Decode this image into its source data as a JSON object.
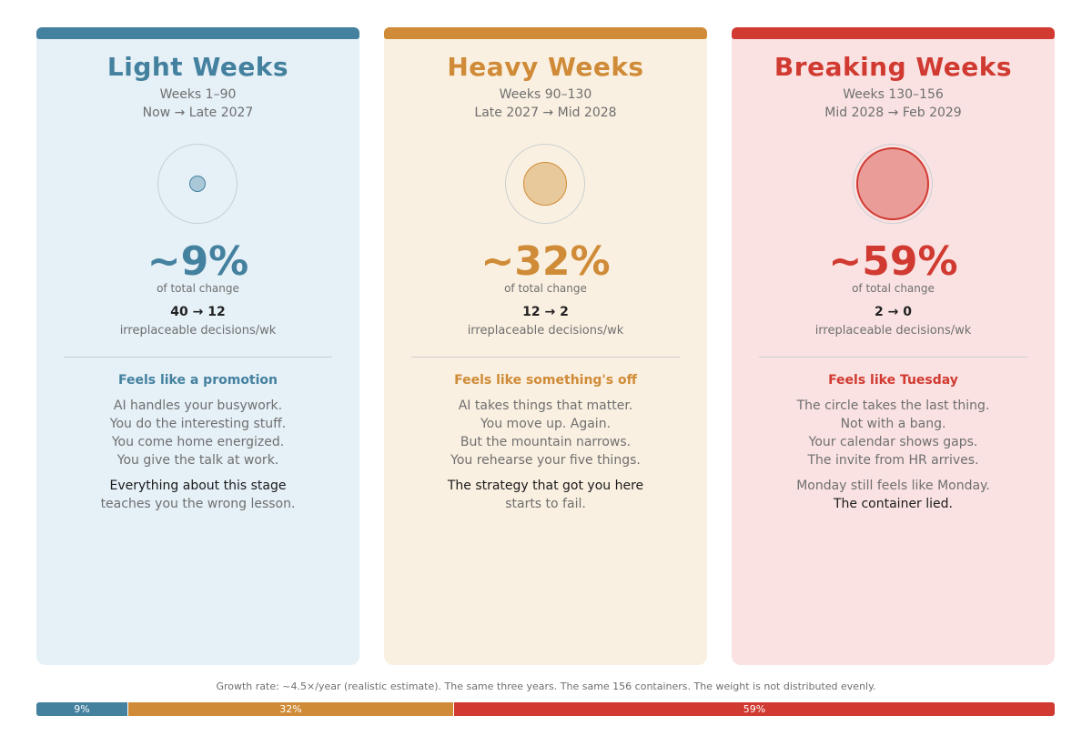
{
  "colors": {
    "light": "#44819f",
    "heavy": "#cf8b37",
    "breaking": "#d03a31",
    "light_bg": "#e5f0f7",
    "heavy_bg": "#faf0e1",
    "breaking_bg": "#fae2e2"
  },
  "cards": [
    {
      "title": "Light Weeks",
      "weeks": "Weeks 1–90",
      "dates": "Now → Late 2027",
      "percent_text": "~9%",
      "percent_value": 9,
      "percent_label": "of total change",
      "decisions": "40 → 12",
      "decisions_label": "irreplaceable decisions/wk",
      "feeling": "Feels like a promotion",
      "lines": [
        "AI handles your busywork.",
        "You do the interesting stuff.",
        "You come home energized.",
        "You give the talk at work."
      ],
      "closing": [
        "Everything about this stage",
        "teaches you the wrong lesson."
      ]
    },
    {
      "title": "Heavy Weeks",
      "weeks": "Weeks 90–130",
      "dates": "Late 2027 → Mid 2028",
      "percent_text": "~32%",
      "percent_value": 32,
      "percent_label": "of total change",
      "decisions": "12 → 2",
      "decisions_label": "irreplaceable decisions/wk",
      "feeling": "Feels like something's off",
      "lines": [
        "AI takes things that matter.",
        "You move up. Again.",
        "But the mountain narrows.",
        "You rehearse your five things."
      ],
      "closing": [
        "The strategy that got you here",
        "starts to fail."
      ]
    },
    {
      "title": "Breaking Weeks",
      "weeks": "Weeks 130–156",
      "dates": "Mid 2028 → Feb 2029",
      "percent_text": "~59%",
      "percent_value": 59,
      "percent_label": "of total change",
      "decisions": "2 → 0",
      "decisions_label": "irreplaceable decisions/wk",
      "feeling": "Feels like Tuesday",
      "lines": [
        "The circle takes the last thing.",
        "Not with a bang.",
        "Your calendar shows gaps.",
        "The invite from HR arrives."
      ],
      "closing": [
        "Monday still feels like Monday.",
        "The container lied."
      ]
    }
  ],
  "footer": {
    "note": "Growth rate: ~4.5×/year (realistic estimate).  The same three years. The same 156 containers. The weight is not distributed evenly."
  },
  "bottom_bar": [
    {
      "label": "9%",
      "value": 9
    },
    {
      "label": "32%",
      "value": 32
    },
    {
      "label": "59%",
      "value": 59
    }
  ]
}
